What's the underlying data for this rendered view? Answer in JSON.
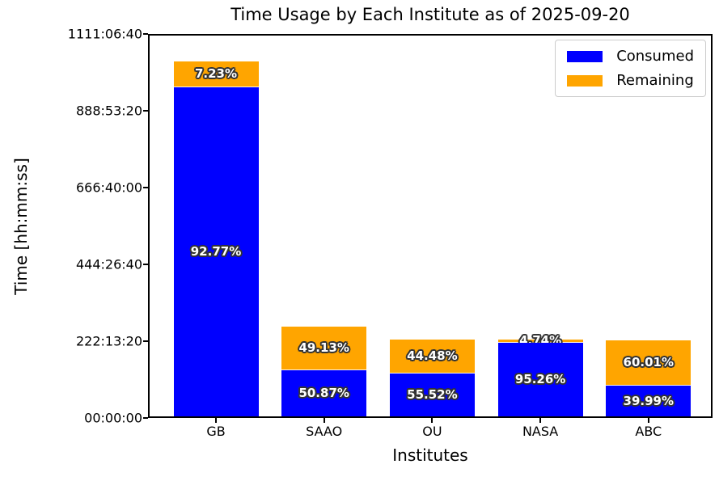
{
  "chart_data": {
    "type": "bar",
    "stacked": true,
    "title": "Time Usage by Each Institute as of 2025-09-20",
    "xlabel": "Institutes",
    "ylabel": "Time [hh:mm:ss]",
    "categories": [
      "GB",
      "SAAO",
      "OU",
      "NASA",
      "ABC"
    ],
    "series": [
      {
        "name": "Consumed",
        "color": "#0000ff",
        "values_seconds": [
          3460000,
          480700,
          449700,
          771600,
          319900
        ],
        "percent_labels": [
          "92.77%",
          "50.87%",
          "55.52%",
          "95.26%",
          "39.99%"
        ]
      },
      {
        "name": "Remaining",
        "color": "#ffa500",
        "values_seconds": [
          269600,
          464300,
          360300,
          38400,
          480100
        ],
        "percent_labels": [
          "7.23%",
          "49.13%",
          "44.48%",
          "4.74%",
          "60.01%"
        ]
      }
    ],
    "totals_seconds": [
      3729600,
      945000,
      810000,
      810000,
      800000
    ],
    "ylim_seconds": [
      0,
      4000000
    ],
    "yticks_seconds": [
      0,
      800000,
      1600000,
      2400000,
      3200000,
      4000000
    ],
    "ytick_labels": [
      "00:00:00",
      "222:13:20",
      "444:26:40",
      "666:40:00",
      "888:53:20",
      "1111:06:40"
    ],
    "legend": {
      "position": "upper right",
      "entries": [
        "Consumed",
        "Remaining"
      ]
    },
    "grid": false,
    "label_text_color": "#ffffff",
    "label_outline_color": "#333333"
  }
}
